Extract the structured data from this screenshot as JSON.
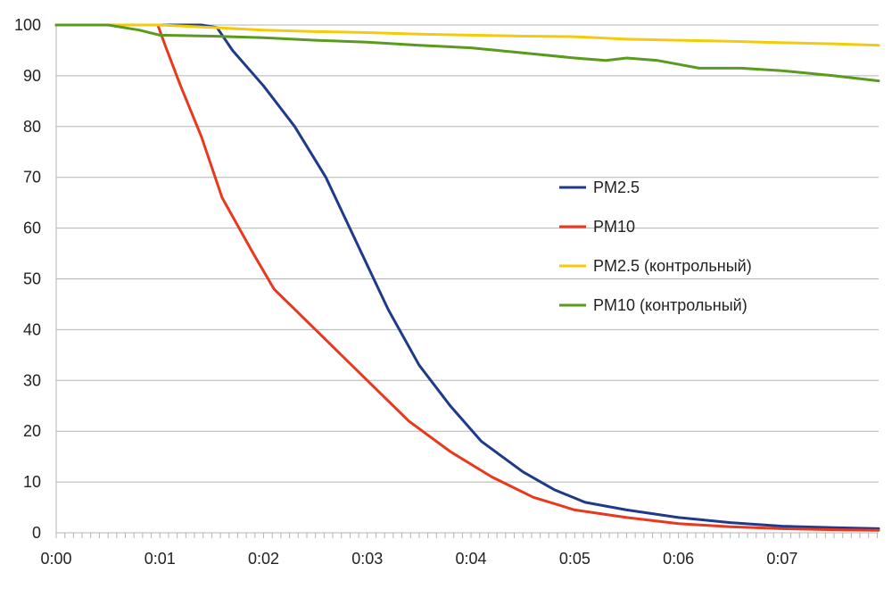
{
  "chart_data": {
    "type": "line",
    "title": "",
    "xlabel": "",
    "ylabel": "",
    "x_unit": "minutes (m:ss)",
    "xlim": [
      0,
      7.93
    ],
    "ylim": [
      0,
      100
    ],
    "x_ticks": [
      {
        "value": 0,
        "label": "0:00"
      },
      {
        "value": 1,
        "label": "0:01"
      },
      {
        "value": 2,
        "label": "0:02"
      },
      {
        "value": 3,
        "label": "0:03"
      },
      {
        "value": 4,
        "label": "0:04"
      },
      {
        "value": 5,
        "label": "0:05"
      },
      {
        "value": 6,
        "label": "0:06"
      },
      {
        "value": 7,
        "label": "0:07"
      }
    ],
    "y_ticks": [
      0,
      10,
      20,
      30,
      40,
      50,
      60,
      70,
      80,
      90,
      100
    ],
    "grid": "horizontal",
    "legend_position": "right-center",
    "series": [
      {
        "name": "PM2.5",
        "color": "#1f3a8a",
        "points": [
          [
            0,
            100
          ],
          [
            0.5,
            100
          ],
          [
            1.0,
            100
          ],
          [
            1.4,
            100
          ],
          [
            1.55,
            99.5
          ],
          [
            1.7,
            95
          ],
          [
            2.0,
            88
          ],
          [
            2.3,
            80
          ],
          [
            2.6,
            70
          ],
          [
            2.9,
            57
          ],
          [
            3.2,
            44
          ],
          [
            3.5,
            33
          ],
          [
            3.8,
            25
          ],
          [
            4.1,
            18
          ],
          [
            4.5,
            12
          ],
          [
            4.8,
            8.5
          ],
          [
            5.1,
            6
          ],
          [
            5.5,
            4.5
          ],
          [
            6.0,
            3
          ],
          [
            6.5,
            2
          ],
          [
            7.0,
            1.3
          ],
          [
            7.5,
            1
          ],
          [
            7.93,
            0.8
          ]
        ]
      },
      {
        "name": "PM10",
        "color": "#e8381e",
        "points": [
          [
            0,
            100
          ],
          [
            0.5,
            100
          ],
          [
            0.98,
            100
          ],
          [
            1.05,
            96
          ],
          [
            1.2,
            88
          ],
          [
            1.4,
            78
          ],
          [
            1.6,
            66
          ],
          [
            1.9,
            55
          ],
          [
            2.1,
            48
          ],
          [
            2.3,
            44
          ],
          [
            2.6,
            38
          ],
          [
            3.0,
            30
          ],
          [
            3.4,
            22
          ],
          [
            3.8,
            16
          ],
          [
            4.2,
            11
          ],
          [
            4.6,
            7
          ],
          [
            5.0,
            4.5
          ],
          [
            5.5,
            3
          ],
          [
            6.0,
            1.8
          ],
          [
            6.5,
            1.2
          ],
          [
            7.0,
            0.8
          ],
          [
            7.5,
            0.6
          ],
          [
            7.93,
            0.5
          ]
        ]
      },
      {
        "name": "PM2.5 (контрольный)",
        "color": "#f2cb0a",
        "points": [
          [
            0,
            100
          ],
          [
            0.5,
            100
          ],
          [
            1.0,
            100
          ],
          [
            1.5,
            99.5
          ],
          [
            2.0,
            99
          ],
          [
            2.5,
            98.7
          ],
          [
            3.0,
            98.5
          ],
          [
            3.5,
            98.2
          ],
          [
            4.0,
            98
          ],
          [
            4.5,
            97.8
          ],
          [
            5.0,
            97.7
          ],
          [
            5.5,
            97.2
          ],
          [
            6.0,
            97
          ],
          [
            6.5,
            96.8
          ],
          [
            7.0,
            96.5
          ],
          [
            7.5,
            96.3
          ],
          [
            7.93,
            96
          ]
        ]
      },
      {
        "name": "PM10 (контрольный)",
        "color": "#5a9a1e",
        "points": [
          [
            0,
            100
          ],
          [
            0.5,
            100
          ],
          [
            0.8,
            99
          ],
          [
            1.0,
            98
          ],
          [
            1.5,
            97.8
          ],
          [
            2.0,
            97.5
          ],
          [
            2.5,
            97
          ],
          [
            3.0,
            96.6
          ],
          [
            3.5,
            96
          ],
          [
            4.0,
            95.5
          ],
          [
            4.5,
            94.5
          ],
          [
            5.0,
            93.5
          ],
          [
            5.3,
            93
          ],
          [
            5.5,
            93.5
          ],
          [
            5.8,
            93
          ],
          [
            6.2,
            91.5
          ],
          [
            6.6,
            91.5
          ],
          [
            7.0,
            91
          ],
          [
            7.5,
            90
          ],
          [
            7.93,
            89
          ]
        ]
      }
    ]
  }
}
